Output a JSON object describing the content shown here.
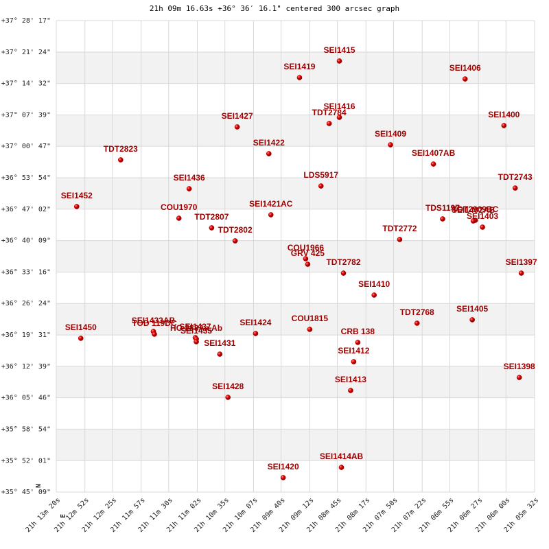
{
  "chart_data": {
    "type": "scatter",
    "title": "21h 09m 16.63s +36° 36′ 16.1\" centered 300 arcsec graph",
    "color": "#cc0000",
    "grid": true,
    "row_shading": true,
    "compass": {
      "north": "N",
      "east": "E"
    },
    "xlim": [
      76400,
      75932
    ],
    "ylim": [
      128709,
      134897
    ],
    "xticks": [
      {
        "value": 76400,
        "label": "21h 13m 20s"
      },
      {
        "value": 76372,
        "label": "21h 12m 52s"
      },
      {
        "value": 76345,
        "label": "21h 12m 25s"
      },
      {
        "value": 76317,
        "label": "21h 11m 57s"
      },
      {
        "value": 76290,
        "label": "21h 11m 30s"
      },
      {
        "value": 76262,
        "label": "21h 11m 02s"
      },
      {
        "value": 76235,
        "label": "21h 10m 35s"
      },
      {
        "value": 76207,
        "label": "21h 10m 07s"
      },
      {
        "value": 76180,
        "label": "21h 09m 40s"
      },
      {
        "value": 76152,
        "label": "21h 09m 12s"
      },
      {
        "value": 76125,
        "label": "21h 08m 45s"
      },
      {
        "value": 76097,
        "label": "21h 08m 17s"
      },
      {
        "value": 76070,
        "label": "21h 07m 50s"
      },
      {
        "value": 76042,
        "label": "21h 07m 22s"
      },
      {
        "value": 76015,
        "label": "21h 06m 55s"
      },
      {
        "value": 75987,
        "label": "21h 06m 27s"
      },
      {
        "value": 75960,
        "label": "21h 06m 00s"
      },
      {
        "value": 75932,
        "label": "21h 05m 32s"
      }
    ],
    "yticks": [
      {
        "value": 128709,
        "label": "+35° 45' 09\""
      },
      {
        "value": 129121,
        "label": "+35° 52' 01\""
      },
      {
        "value": 129534,
        "label": "+35° 58' 54\""
      },
      {
        "value": 129946,
        "label": "+36° 05' 46\""
      },
      {
        "value": 130359,
        "label": "+36° 12' 39\""
      },
      {
        "value": 130771,
        "label": "+36° 19' 31\""
      },
      {
        "value": 131184,
        "label": "+36° 26' 24\""
      },
      {
        "value": 131596,
        "label": "+36° 33' 16\""
      },
      {
        "value": 132009,
        "label": "+36° 40' 09\""
      },
      {
        "value": 132422,
        "label": "+36° 47' 02\""
      },
      {
        "value": 132834,
        "label": "+36° 53' 54\""
      },
      {
        "value": 133247,
        "label": "+37° 00' 47\""
      },
      {
        "value": 133659,
        "label": "+37° 07' 39\""
      },
      {
        "value": 134072,
        "label": "+37° 14' 32\""
      },
      {
        "value": 134484,
        "label": "+37° 21' 24\""
      },
      {
        "value": 134897,
        "label": "+37° 28' 17\""
      }
    ],
    "labels": [
      "SEI1415",
      "SEI1419",
      "SEI1406",
      "SEI1416",
      "TDT2784",
      "SEI1427",
      "SEI1400",
      "SEI1409",
      "TDT2823",
      "SEI1422",
      "SEI1407AB",
      "LDS5917",
      "SEI1436",
      "TDT2743",
      "SEI1452",
      "COU1970",
      "SEI1421AC",
      "TDT2807",
      "TDT2802",
      "TDS1197",
      "TDT2909BC",
      "SEI1402AB",
      "SEI1403",
      "TDT2772",
      "COU1966",
      "GRV 425",
      "TDT2782",
      "SEI1397",
      "SEI1410",
      "SEI1433AB",
      "TOD 119DC",
      "SEI1437",
      "HO 283Aa,Ab",
      "SEI1435",
      "SEI1424",
      "COU1815",
      "TDT2768",
      "SEI1405",
      "SEI1450",
      "CRB 138",
      "SEI1431",
      "SEI1412",
      "SEI1398",
      "SEI1413",
      "SEI1428",
      "SEI1414AB",
      "SEI1420"
    ],
    "x": [
      76123,
      76162,
      76000,
      76123,
      76133,
      76223,
      75962,
      76073,
      76337,
      76192,
      76031,
      76141,
      76270,
      75951,
      76380,
      76280,
      76190,
      76248,
      76225,
      76022,
      75990,
      75992,
      75983,
      76064,
      76156,
      76154,
      76119,
      75945,
      76089,
      76305,
      76304,
      76264,
      76263,
      76263,
      76205,
      76152,
      76047,
      75993,
      76376,
      76105,
      76240,
      76109,
      75947,
      76112,
      76232,
      76121,
      76178
    ],
    "values": [
      134366,
      134149,
      134131,
      133627,
      133546,
      133501,
      133519,
      133267,
      133069,
      133150,
      133014,
      132726,
      132690,
      132699,
      132456,
      132303,
      132348,
      132177,
      132006,
      132294,
      132276,
      132267,
      132186,
      132024,
      131771,
      131699,
      131582,
      131582,
      131294,
      130817,
      130781,
      130736,
      130718,
      130682,
      130790,
      130844,
      130925,
      130970,
      130727,
      130673,
      130519,
      130420,
      130213,
      130042,
      129952,
      129033,
      128898
    ]
  }
}
